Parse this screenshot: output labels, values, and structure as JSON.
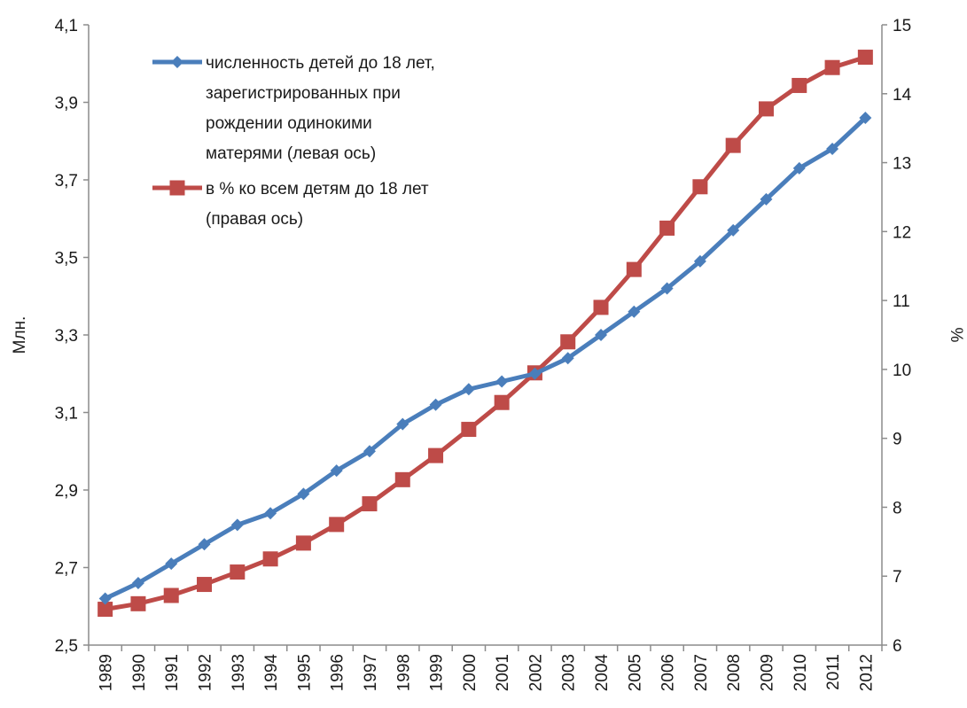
{
  "chart_data": {
    "type": "line",
    "categories": [
      "1989",
      "1990",
      "1991",
      "1992",
      "1993",
      "1994",
      "1995",
      "1996",
      "1997",
      "1998",
      "1999",
      "2000",
      "2001",
      "2002",
      "2003",
      "2004",
      "2005",
      "2006",
      "2007",
      "2008",
      "2009",
      "2010",
      "2011",
      "2012"
    ],
    "left_axis": {
      "label": "Млн.",
      "range": [
        2.5,
        4.1
      ],
      "ticks": [
        "2,5",
        "2,7",
        "2,9",
        "3,1",
        "3,3",
        "3,5",
        "3,7",
        "3,9",
        "4,1"
      ],
      "tick_values": [
        2.5,
        2.7,
        2.9,
        3.1,
        3.3,
        3.5,
        3.7,
        3.9,
        4.1
      ]
    },
    "right_axis": {
      "label": "%",
      "range": [
        6,
        15
      ],
      "ticks": [
        "6",
        "7",
        "8",
        "9",
        "10",
        "11",
        "12",
        "13",
        "14",
        "15"
      ],
      "tick_values": [
        6,
        7,
        8,
        9,
        10,
        11,
        12,
        13,
        14,
        15
      ]
    },
    "series": [
      {
        "name": "численность детей до 18 лет, зарегистрированных при рождении одинокими матерями (левая ось)",
        "legend_lines": [
          "численность детей до 18 лет,",
          "зарегистрированных при",
          "рождении одинокими",
          "матерями (левая ось)"
        ],
        "axis": "left",
        "color": "#4a7ebb",
        "marker": "diamond",
        "values": [
          2.62,
          2.66,
          2.71,
          2.76,
          2.81,
          2.84,
          2.89,
          2.95,
          3.0,
          3.07,
          3.12,
          3.16,
          3.18,
          3.2,
          3.24,
          3.3,
          3.36,
          3.42,
          3.49,
          3.57,
          3.65,
          3.73,
          3.78,
          3.86
        ]
      },
      {
        "name": "в % ко всем детям до 18 лет (правая ось)",
        "legend_lines": [
          "в % ко всем детям до 18 лет",
          "(правая ось)"
        ],
        "axis": "right",
        "color": "#be4b48",
        "marker": "square",
        "values": [
          6.52,
          6.6,
          6.72,
          6.88,
          7.06,
          7.25,
          7.48,
          7.75,
          8.05,
          8.4,
          8.75,
          9.13,
          9.52,
          9.95,
          10.4,
          10.9,
          11.45,
          12.05,
          12.65,
          13.25,
          13.78,
          14.12,
          14.38,
          14.53
        ]
      }
    ]
  }
}
